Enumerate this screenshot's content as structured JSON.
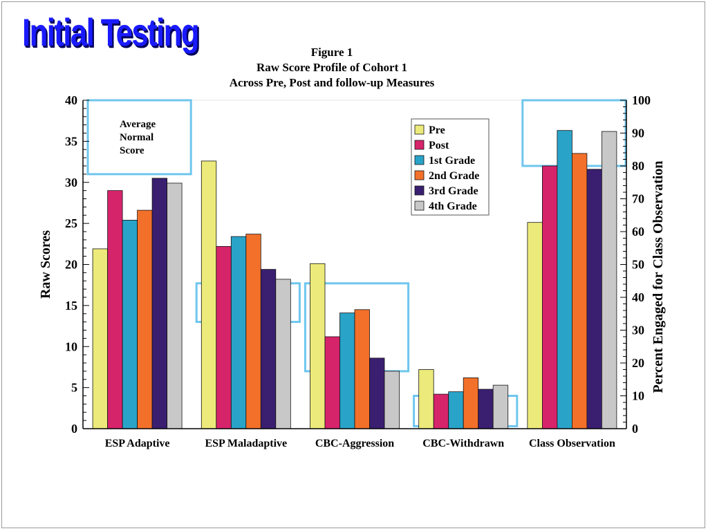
{
  "banner": "Initial Testing",
  "titles": [
    "Figure 1",
    "Raw Score Profile of Cohort 1",
    "Across Pre, Post and follow-up Measures"
  ],
  "annotation": [
    "Average",
    "Normal",
    "Score"
  ],
  "colors": {
    "Pre": "#ecea7a",
    "Post": "#d6246b",
    "1st Grade": "#2aa3c8",
    "2nd Grade": "#f2702a",
    "3rd Grade": "#3a1f70",
    "4th Grade": "#c8c8c8",
    "highlight_box": "#6ec6ee"
  },
  "chart_data": {
    "type": "bar",
    "title": "Figure 1",
    "subtitle": "Raw Score Profile of Cohort 1 Across Pre, Post and follow-up Measures",
    "categories": [
      "ESP Adaptive",
      "ESP Maladaptive",
      "CBC-Aggression",
      "CBC-Withdrawn",
      "Class Observation"
    ],
    "ylabel": "Raw Scores",
    "y2label": "Percent Engaged for Class Observation",
    "ylim": [
      0,
      40
    ],
    "y2lim": [
      0,
      100
    ],
    "yticks": [
      0,
      5,
      10,
      15,
      20,
      25,
      30,
      35,
      40
    ],
    "y2ticks": [
      0,
      10,
      20,
      30,
      40,
      50,
      60,
      70,
      80,
      90,
      100
    ],
    "secondary_axis_category": "Class Observation",
    "legend_position": "top-right",
    "series": [
      {
        "name": "Pre",
        "values": [
          21.9,
          32.6,
          20.1,
          7.2,
          62.8
        ]
      },
      {
        "name": "Post",
        "values": [
          29.0,
          22.2,
          11.2,
          4.2,
          80.0
        ]
      },
      {
        "name": "1st Grade",
        "values": [
          25.4,
          23.4,
          14.1,
          4.5,
          90.8
        ]
      },
      {
        "name": "2nd Grade",
        "values": [
          26.6,
          23.7,
          14.5,
          6.2,
          83.8
        ]
      },
      {
        "name": "3rd Grade",
        "values": [
          30.5,
          19.4,
          8.6,
          4.8,
          79.0
        ]
      },
      {
        "name": "4th Grade",
        "values": [
          29.9,
          18.2,
          7.0,
          5.3,
          90.5
        ]
      }
    ],
    "highlight_boxes": [
      {
        "category": "ESP Adaptive",
        "axis": "left",
        "range": [
          31,
          40
        ]
      },
      {
        "category": "ESP Maladaptive",
        "axis": "left",
        "range": [
          13,
          17.7
        ]
      },
      {
        "category": "CBC-Aggression",
        "axis": "left",
        "range": [
          7,
          17.7
        ]
      },
      {
        "category": "CBC-Withdrawn",
        "axis": "left",
        "range": [
          0.3,
          4
        ]
      },
      {
        "category": "Class Observation",
        "axis": "right",
        "range": [
          80,
          100
        ]
      }
    ]
  }
}
